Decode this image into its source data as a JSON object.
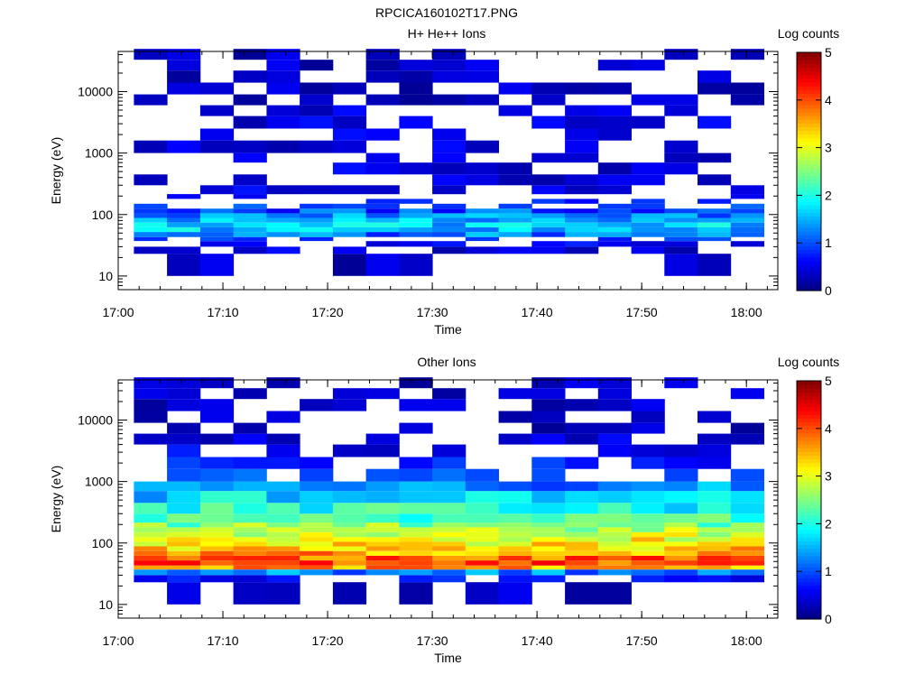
{
  "figure_title": "RPCICA160102T17.PNG",
  "chart_data": [
    {
      "type": "heatmap",
      "title": "H+ He++ Ions",
      "xlabel": "Time",
      "ylabel": "Energy (eV)",
      "y_scale": "log",
      "ylim": [
        6,
        45000
      ],
      "xlim": [
        "17:00",
        "18:03"
      ],
      "x_ticks": [
        "17:00",
        "17:10",
        "17:20",
        "17:30",
        "17:40",
        "17:50",
        "18:00"
      ],
      "y_ticks": [
        "10",
        "100",
        "1000",
        "10000"
      ],
      "colorbar": {
        "label": "Log counts",
        "range": [
          0,
          5
        ],
        "ticks": [
          "0",
          "1",
          "2",
          "3",
          "4",
          "5"
        ],
        "colormap": "jet"
      },
      "time_bins_start": [
        "17:01:30",
        "17:04:40",
        "17:07:50",
        "17:11:00",
        "17:14:10",
        "17:17:20",
        "17:20:30",
        "17:23:40",
        "17:26:50",
        "17:30:00",
        "17:33:10",
        "17:36:20",
        "17:39:30",
        "17:42:40",
        "17:45:50",
        "17:49:00",
        "17:52:10",
        "17:55:20",
        "17:58:30"
      ],
      "energy_bins_eV": [
        10,
        23,
        30,
        37,
        43,
        52,
        62,
        74,
        88,
        105,
        125,
        150,
        180,
        215,
        300,
        450,
        700,
        1000,
        1600,
        2500,
        4000,
        6000,
        9000,
        14000,
        22000,
        33000
      ],
      "log_counts_profile_by_energy": [
        0.1,
        0.2,
        0.4,
        0.7,
        1.2,
        1.6,
        1.6,
        1.5,
        1.3,
        1.0,
        0.8,
        0.6,
        0.4,
        0.3,
        0.2,
        0.2,
        0.2,
        0.2,
        0.2,
        0.2,
        0.2,
        0.1,
        0.1,
        0.1,
        0.1,
        0.1
      ]
    },
    {
      "type": "heatmap",
      "title": "Other Ions",
      "xlabel": "Time",
      "ylabel": "Energy (eV)",
      "y_scale": "log",
      "ylim": [
        6,
        45000
      ],
      "xlim": [
        "17:00",
        "18:03"
      ],
      "x_ticks": [
        "17:00",
        "17:10",
        "17:20",
        "17:30",
        "17:40",
        "17:50",
        "18:00"
      ],
      "y_ticks": [
        "10",
        "100",
        "1000",
        "10000"
      ],
      "colorbar": {
        "label": "Log counts",
        "range": [
          0,
          5
        ],
        "ticks": [
          "0",
          "1",
          "2",
          "3",
          "4",
          "5"
        ],
        "colormap": "jet"
      },
      "time_bins_start": [
        "17:01:30",
        "17:04:40",
        "17:07:50",
        "17:11:00",
        "17:14:10",
        "17:17:20",
        "17:20:30",
        "17:23:40",
        "17:26:50",
        "17:30:00",
        "17:33:10",
        "17:36:20",
        "17:39:30",
        "17:42:40",
        "17:45:50",
        "17:49:00",
        "17:52:10",
        "17:55:20",
        "17:58:30"
      ],
      "energy_bins_eV": [
        10,
        23,
        30,
        37,
        43,
        52,
        62,
        74,
        88,
        105,
        125,
        150,
        180,
        215,
        300,
        450,
        700,
        1000,
        1600,
        2500,
        4000,
        6000,
        9000,
        14000,
        22000,
        33000
      ],
      "log_counts_profile_by_energy": [
        0.1,
        0.4,
        1.3,
        3.6,
        4.0,
        3.9,
        3.6,
        3.4,
        3.2,
        3.1,
        2.9,
        2.7,
        2.5,
        2.3,
        2.0,
        1.7,
        1.3,
        0.9,
        0.5,
        0.3,
        0.2,
        0.1,
        0.1,
        0.1,
        0.1,
        0.1
      ]
    }
  ]
}
